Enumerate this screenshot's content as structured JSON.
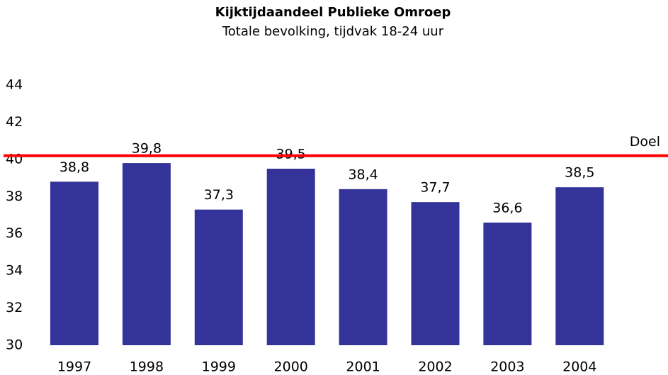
{
  "chart_data": {
    "type": "bar",
    "title": "Kijktijdaandeel Publieke Omroep",
    "subtitle": "Totale bevolking, tijdvak 18-24 uur",
    "categories": [
      "1997",
      "1998",
      "1999",
      "2000",
      "2001",
      "2002",
      "2003",
      "2004"
    ],
    "values": [
      38.8,
      39.8,
      37.3,
      39.5,
      38.4,
      37.7,
      36.6,
      38.5
    ],
    "value_labels": [
      "38,8",
      "39,8",
      "37,3",
      "39,5",
      "38,4",
      "37,7",
      "36,6",
      "38,5"
    ],
    "color": "#333399",
    "ylim": [
      30,
      44
    ],
    "yticks": [
      30,
      32,
      34,
      36,
      38,
      40,
      42,
      44
    ],
    "grid": false,
    "target": {
      "label": "Doel",
      "value": 40.2,
      "color": "#ff0000"
    }
  }
}
